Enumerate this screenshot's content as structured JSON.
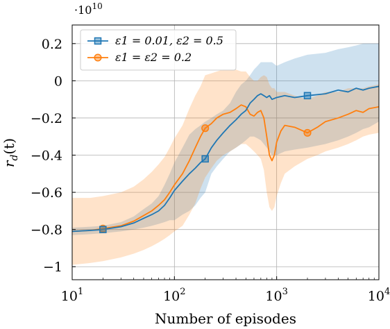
{
  "chart_data": {
    "type": "line",
    "xlabel": "Number of episodes",
    "ylabel": "r_d(t)",
    "x_scale": "log",
    "xlim": [
      10,
      10000
    ],
    "ylim": [
      -1.07,
      0.3
    ],
    "y_multiplier_label": "·10^10",
    "x_ticks": [
      {
        "value": 10,
        "base": "10",
        "exp": "1"
      },
      {
        "value": 100,
        "base": "10",
        "exp": "2"
      },
      {
        "value": 1000,
        "base": "10",
        "exp": "3"
      },
      {
        "value": 10000,
        "base": "10",
        "exp": "4"
      }
    ],
    "y_ticks": [
      {
        "value": 0.2,
        "label": "0.2"
      },
      {
        "value": 0,
        "label": "0"
      },
      {
        "value": -0.2,
        "label": "−0.2"
      },
      {
        "value": -0.4,
        "label": "−0.4"
      },
      {
        "value": -0.6,
        "label": "−0.6"
      },
      {
        "value": -0.8,
        "label": "−0.8"
      },
      {
        "value": -1,
        "label": "−1"
      }
    ],
    "grid": true,
    "legend_position": "top-left",
    "series": [
      {
        "name": "ε1 = 0.01, ε2 = 0.5",
        "color": "#1f77b4",
        "marker": "square",
        "marker_x": [
          20,
          200,
          2000
        ],
        "points": [
          [
            10,
            -0.81,
            -0.83,
            -0.79
          ],
          [
            15,
            -0.805,
            -0.825,
            -0.785
          ],
          [
            20,
            -0.8,
            -0.82,
            -0.78
          ],
          [
            30,
            -0.785,
            -0.81,
            -0.76
          ],
          [
            40,
            -0.765,
            -0.8,
            -0.73
          ],
          [
            50,
            -0.74,
            -0.79,
            -0.69
          ],
          [
            60,
            -0.72,
            -0.78,
            -0.66
          ],
          [
            70,
            -0.7,
            -0.77,
            -0.62
          ],
          [
            80,
            -0.67,
            -0.76,
            -0.56
          ],
          [
            90,
            -0.63,
            -0.75,
            -0.5
          ],
          [
            100,
            -0.59,
            -0.75,
            -0.44
          ],
          [
            120,
            -0.54,
            -0.72,
            -0.36
          ],
          [
            140,
            -0.5,
            -0.7,
            -0.29
          ],
          [
            160,
            -0.47,
            -0.67,
            -0.26
          ],
          [
            180,
            -0.44,
            -0.63,
            -0.24
          ],
          [
            200,
            -0.42,
            -0.6,
            -0.22
          ],
          [
            230,
            -0.36,
            -0.5,
            -0.2
          ],
          [
            260,
            -0.32,
            -0.46,
            -0.18
          ],
          [
            300,
            -0.28,
            -0.42,
            -0.16
          ],
          [
            350,
            -0.24,
            -0.38,
            -0.12
          ],
          [
            400,
            -0.21,
            -0.36,
            -0.06
          ],
          [
            450,
            -0.18,
            -0.34,
            -0.02
          ],
          [
            500,
            -0.16,
            -0.32,
            0.0
          ],
          [
            550,
            -0.12,
            -0.3,
            0.03
          ],
          [
            600,
            -0.1,
            -0.3,
            0.06
          ],
          [
            650,
            -0.08,
            -0.31,
            0.08
          ],
          [
            700,
            -0.07,
            -0.32,
            0.1
          ],
          [
            750,
            -0.08,
            -0.34,
            0.1
          ],
          [
            800,
            -0.09,
            -0.36,
            0.1
          ],
          [
            850,
            -0.08,
            -0.38,
            0.1
          ],
          [
            900,
            -0.1,
            -0.4,
            0.1
          ],
          [
            1000,
            -0.09,
            -0.4,
            0.08
          ],
          [
            1200,
            -0.08,
            -0.38,
            0.1
          ],
          [
            1500,
            -0.09,
            -0.37,
            0.12
          ],
          [
            2000,
            -0.08,
            -0.36,
            0.14
          ],
          [
            3000,
            -0.07,
            -0.34,
            0.15
          ],
          [
            4000,
            -0.05,
            -0.32,
            0.17
          ],
          [
            5000,
            -0.06,
            -0.3,
            0.18
          ],
          [
            6000,
            -0.04,
            -0.28,
            0.19
          ],
          [
            7000,
            -0.05,
            -0.26,
            0.2
          ],
          [
            8000,
            -0.04,
            -0.25,
            0.2
          ],
          [
            10000,
            -0.03,
            -0.22,
            0.2
          ]
        ]
      },
      {
        "name": "ε1 = ε2 = 0.2",
        "color": "#ff7f0e",
        "marker": "circle",
        "marker_x": [
          20,
          200,
          2000
        ],
        "points": [
          [
            10,
            -0.81,
            -0.99,
            -0.63
          ],
          [
            15,
            -0.805,
            -0.98,
            -0.63
          ],
          [
            20,
            -0.795,
            -0.97,
            -0.62
          ],
          [
            30,
            -0.78,
            -0.95,
            -0.6
          ],
          [
            40,
            -0.755,
            -0.93,
            -0.57
          ],
          [
            50,
            -0.725,
            -0.91,
            -0.53
          ],
          [
            60,
            -0.7,
            -0.89,
            -0.49
          ],
          [
            70,
            -0.67,
            -0.87,
            -0.45
          ],
          [
            80,
            -0.64,
            -0.85,
            -0.41
          ],
          [
            90,
            -0.6,
            -0.83,
            -0.36
          ],
          [
            100,
            -0.56,
            -0.81,
            -0.31
          ],
          [
            120,
            -0.5,
            -0.78,
            -0.24
          ],
          [
            140,
            -0.43,
            -0.72,
            -0.15
          ],
          [
            160,
            -0.36,
            -0.66,
            -0.08
          ],
          [
            180,
            -0.3,
            -0.58,
            -0.03
          ],
          [
            200,
            -0.255,
            -0.52,
            0.03
          ],
          [
            230,
            -0.23,
            -0.47,
            0.04
          ],
          [
            260,
            -0.2,
            -0.43,
            0.05
          ],
          [
            300,
            -0.18,
            -0.4,
            0.06
          ],
          [
            350,
            -0.17,
            -0.38,
            0.06
          ],
          [
            400,
            -0.15,
            -0.36,
            0.06
          ],
          [
            450,
            -0.13,
            -0.34,
            0.05
          ],
          [
            500,
            -0.14,
            -0.34,
            0.05
          ],
          [
            550,
            -0.18,
            -0.36,
            0.02
          ],
          [
            600,
            -0.19,
            -0.38,
            0.0
          ],
          [
            650,
            -0.17,
            -0.4,
            0.0
          ],
          [
            700,
            -0.16,
            -0.42,
            0.02
          ],
          [
            750,
            -0.2,
            -0.48,
            0.03
          ],
          [
            800,
            -0.3,
            -0.6,
            0.02
          ],
          [
            850,
            -0.4,
            -0.68,
            -0.02
          ],
          [
            900,
            -0.43,
            -0.7,
            -0.04
          ],
          [
            950,
            -0.4,
            -0.68,
            -0.04
          ],
          [
            1000,
            -0.33,
            -0.62,
            -0.06
          ],
          [
            1100,
            -0.27,
            -0.55,
            -0.06
          ],
          [
            1200,
            -0.24,
            -0.5,
            -0.06
          ],
          [
            1500,
            -0.25,
            -0.46,
            -0.08
          ],
          [
            2000,
            -0.28,
            -0.42,
            -0.1
          ],
          [
            2500,
            -0.25,
            -0.4,
            -0.08
          ],
          [
            3000,
            -0.22,
            -0.38,
            -0.06
          ],
          [
            4000,
            -0.2,
            -0.36,
            -0.06
          ],
          [
            5000,
            -0.18,
            -0.34,
            -0.04
          ],
          [
            6000,
            -0.16,
            -0.32,
            -0.04
          ],
          [
            7000,
            -0.17,
            -0.3,
            -0.04
          ],
          [
            8000,
            -0.15,
            -0.29,
            -0.03
          ],
          [
            10000,
            -0.14,
            -0.28,
            -0.02
          ]
        ]
      }
    ]
  }
}
